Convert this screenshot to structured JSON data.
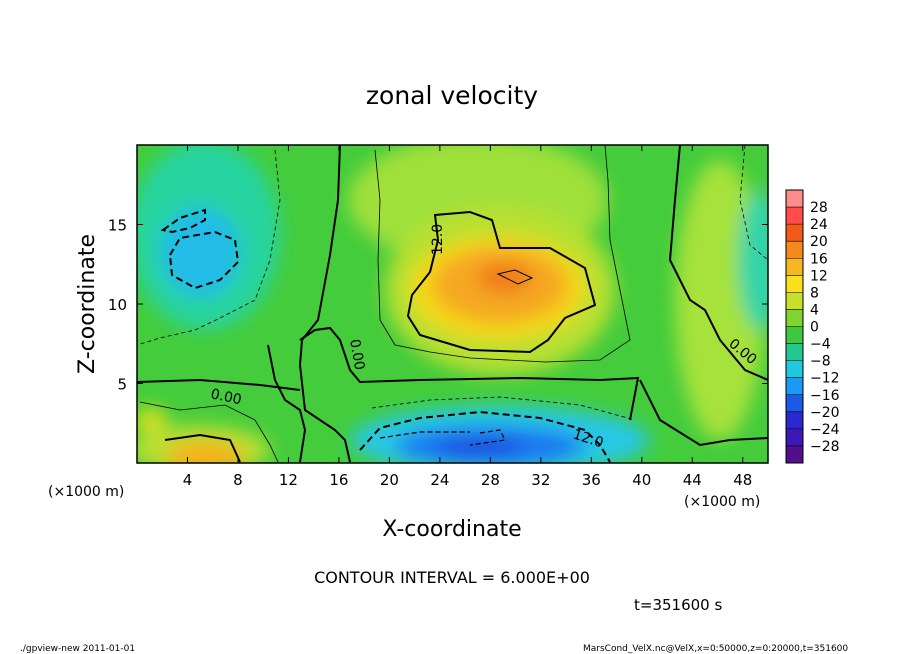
{
  "chart_data": {
    "type": "heatmap",
    "title": "zonal velocity",
    "xlabel": "X-coordinate",
    "ylabel": "Z-coordinate",
    "x_unit_left": "(×1000 m)",
    "x_unit_right": "(×1000 m)",
    "xlim": [
      0,
      50
    ],
    "ylim": [
      0,
      20
    ],
    "x_ticks": [
      "4",
      "8",
      "12",
      "16",
      "20",
      "24",
      "28",
      "32",
      "36",
      "40",
      "44",
      "48"
    ],
    "y_ticks": [
      "5",
      "10",
      "15"
    ],
    "colorbar_labels": [
      "28",
      "24",
      "20",
      "16",
      "12",
      "8",
      "4",
      "0",
      "−4",
      "−8",
      "−12",
      "−16",
      "−20",
      "−24",
      "−28"
    ],
    "colorbar_range": [
      -30,
      30
    ],
    "contour_labels": [
      "12.0",
      "0.00",
      "0.00",
      "0.00",
      "12.0"
    ],
    "contour_interval_text": "CONTOUR INTERVAL = 6.000E+00",
    "time_text": "t=351600 s",
    "grid": false,
    "colors": {
      "negative_strong": "#2a1aa8",
      "negative": "#1a8cff",
      "neutral": "#22c23a",
      "positive": "#f0d010",
      "positive_strong": "#f06a1e"
    }
  },
  "footer": {
    "left": "./gpview-new   2011-01-01",
    "right": "MarsCond_VelX.nc@VelX,x=0:50000,z=0:20000,t=351600"
  }
}
